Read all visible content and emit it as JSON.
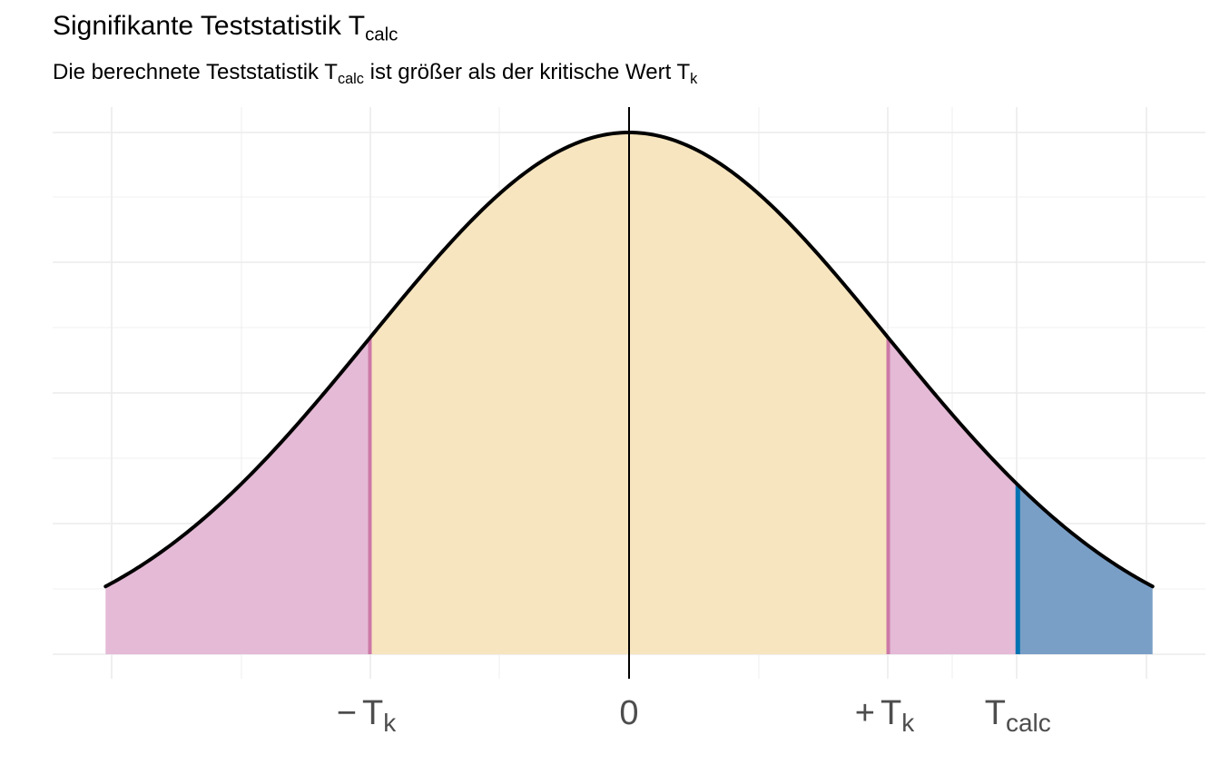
{
  "chart_data": {
    "type": "area",
    "title": {
      "main": "Signifikante Teststatistik T",
      "sub": "calc"
    },
    "subtitle": {
      "part1": "Die berechnete Teststatistik T",
      "sub1": "calc",
      "part2": " ist größer als der kritische Wert T",
      "sub2": "k"
    },
    "distribution": "normal",
    "mean": 0,
    "sd": 1,
    "xlim": [
      -2.02,
      2.02
    ],
    "critical_value": 1.0,
    "t_calc": 1.5,
    "grid": true,
    "x_ticks": [
      {
        "x": -1.0,
        "prefix": "−",
        "main": "T",
        "sub": "k"
      },
      {
        "x": 0.0,
        "prefix": "",
        "main": "0",
        "sub": ""
      },
      {
        "x": 1.0,
        "prefix": "+",
        "main": "T",
        "sub": "k"
      },
      {
        "x": 1.5,
        "prefix": "",
        "main": "T",
        "sub": "calc"
      }
    ],
    "regions": [
      {
        "name": "acceptance",
        "from": -1.0,
        "to": 1.0,
        "fill": "#f7e5bf"
      },
      {
        "name": "rejection",
        "from": -2.02,
        "to": -1.0,
        "fill": "#e4bad6"
      },
      {
        "name": "rejection",
        "from": 1.0,
        "to": 1.5,
        "fill": "#e4bad6"
      },
      {
        "name": "beyond-t-calc",
        "from": 1.5,
        "to": 2.02,
        "fill": "#7a9fc6"
      }
    ],
    "colors": {
      "curve": "#000000",
      "critical_line": "#cc79a7",
      "t_calc_line": "#0072b2",
      "grid": "#ebebeb"
    }
  }
}
